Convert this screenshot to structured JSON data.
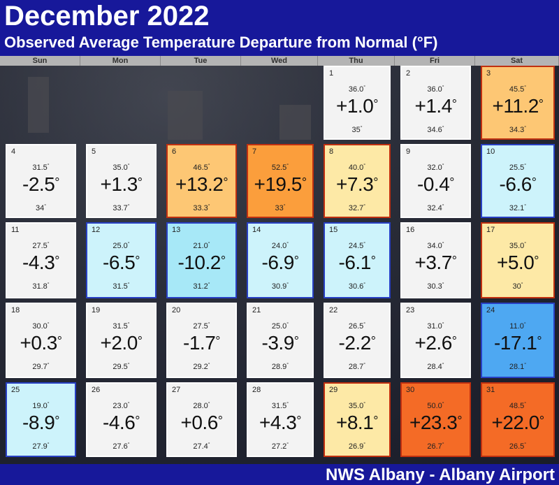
{
  "title": "December 2022",
  "subtitle": "Observed Average Temperature Departure from Normal (°F)",
  "source": "NWS Albany - Albany Airport",
  "weekdays": [
    "Sun",
    "Mon",
    "Tue",
    "Wed",
    "Thu",
    "Fri",
    "Sat"
  ],
  "first_weekday_index": 4,
  "colors": {
    "neutral": "#f3f3f3",
    "cold1": "#cdf3fb",
    "cold2": "#a7e8f7",
    "cold3": "#4ea8f2",
    "warm1": "#fde9a6",
    "warm2": "#fdc774",
    "warm3": "#fb9e3c",
    "warm4": "#f46b26",
    "border_neutral": "#ffffff",
    "border_cold": "#2840c4",
    "border_warm": "#c03010"
  },
  "chart_data": {
    "type": "table",
    "title": "December 2022",
    "subtitle": "Observed Average Temperature Departure from Normal (°F)",
    "days": [
      {
        "day": 1,
        "high": "36.0",
        "departure": "+1.0",
        "low": "35"
      },
      {
        "day": 2,
        "high": "36.0",
        "departure": "+1.4",
        "low": "34.6"
      },
      {
        "day": 3,
        "high": "45.5",
        "departure": "+11.2",
        "low": "34.3"
      },
      {
        "day": 4,
        "high": "31.5",
        "departure": "-2.5",
        "low": "34"
      },
      {
        "day": 5,
        "high": "35.0",
        "departure": "+1.3",
        "low": "33.7"
      },
      {
        "day": 6,
        "high": "46.5",
        "departure": "+13.2",
        "low": "33.3"
      },
      {
        "day": 7,
        "high": "52.5",
        "departure": "+19.5",
        "low": "33"
      },
      {
        "day": 8,
        "high": "40.0",
        "departure": "+7.3",
        "low": "32.7"
      },
      {
        "day": 9,
        "high": "32.0",
        "departure": "-0.4",
        "low": "32.4"
      },
      {
        "day": 10,
        "high": "25.5",
        "departure": "-6.6",
        "low": "32.1"
      },
      {
        "day": 11,
        "high": "27.5",
        "departure": "-4.3",
        "low": "31.8"
      },
      {
        "day": 12,
        "high": "25.0",
        "departure": "-6.5",
        "low": "31.5"
      },
      {
        "day": 13,
        "high": "21.0",
        "departure": "-10.2",
        "low": "31.2"
      },
      {
        "day": 14,
        "high": "24.0",
        "departure": "-6.9",
        "low": "30.9"
      },
      {
        "day": 15,
        "high": "24.5",
        "departure": "-6.1",
        "low": "30.6"
      },
      {
        "day": 16,
        "high": "34.0",
        "departure": "+3.7",
        "low": "30.3"
      },
      {
        "day": 17,
        "high": "35.0",
        "departure": "+5.0",
        "low": "30"
      },
      {
        "day": 18,
        "high": "30.0",
        "departure": "+0.3",
        "low": "29.7"
      },
      {
        "day": 19,
        "high": "31.5",
        "departure": "+2.0",
        "low": "29.5"
      },
      {
        "day": 20,
        "high": "27.5",
        "departure": "-1.7",
        "low": "29.2"
      },
      {
        "day": 21,
        "high": "25.0",
        "departure": "-3.9",
        "low": "28.9"
      },
      {
        "day": 22,
        "high": "26.5",
        "departure": "-2.2",
        "low": "28.7"
      },
      {
        "day": 23,
        "high": "31.0",
        "departure": "+2.6",
        "low": "28.4"
      },
      {
        "day": 24,
        "high": "11.0",
        "departure": "-17.1",
        "low": "28.1"
      },
      {
        "day": 25,
        "high": "19.0",
        "departure": "-8.9",
        "low": "27.9"
      },
      {
        "day": 26,
        "high": "23.0",
        "departure": "-4.6",
        "low": "27.6"
      },
      {
        "day": 27,
        "high": "28.0",
        "departure": "+0.6",
        "low": "27.4"
      },
      {
        "day": 28,
        "high": "31.5",
        "departure": "+4.3",
        "low": "27.2"
      },
      {
        "day": 29,
        "high": "35.0",
        "departure": "+8.1",
        "low": "26.9"
      },
      {
        "day": 30,
        "high": "50.0",
        "departure": "+23.3",
        "low": "26.7"
      },
      {
        "day": 31,
        "high": "48.5",
        "departure": "+22.0",
        "low": "26.5"
      }
    ]
  }
}
